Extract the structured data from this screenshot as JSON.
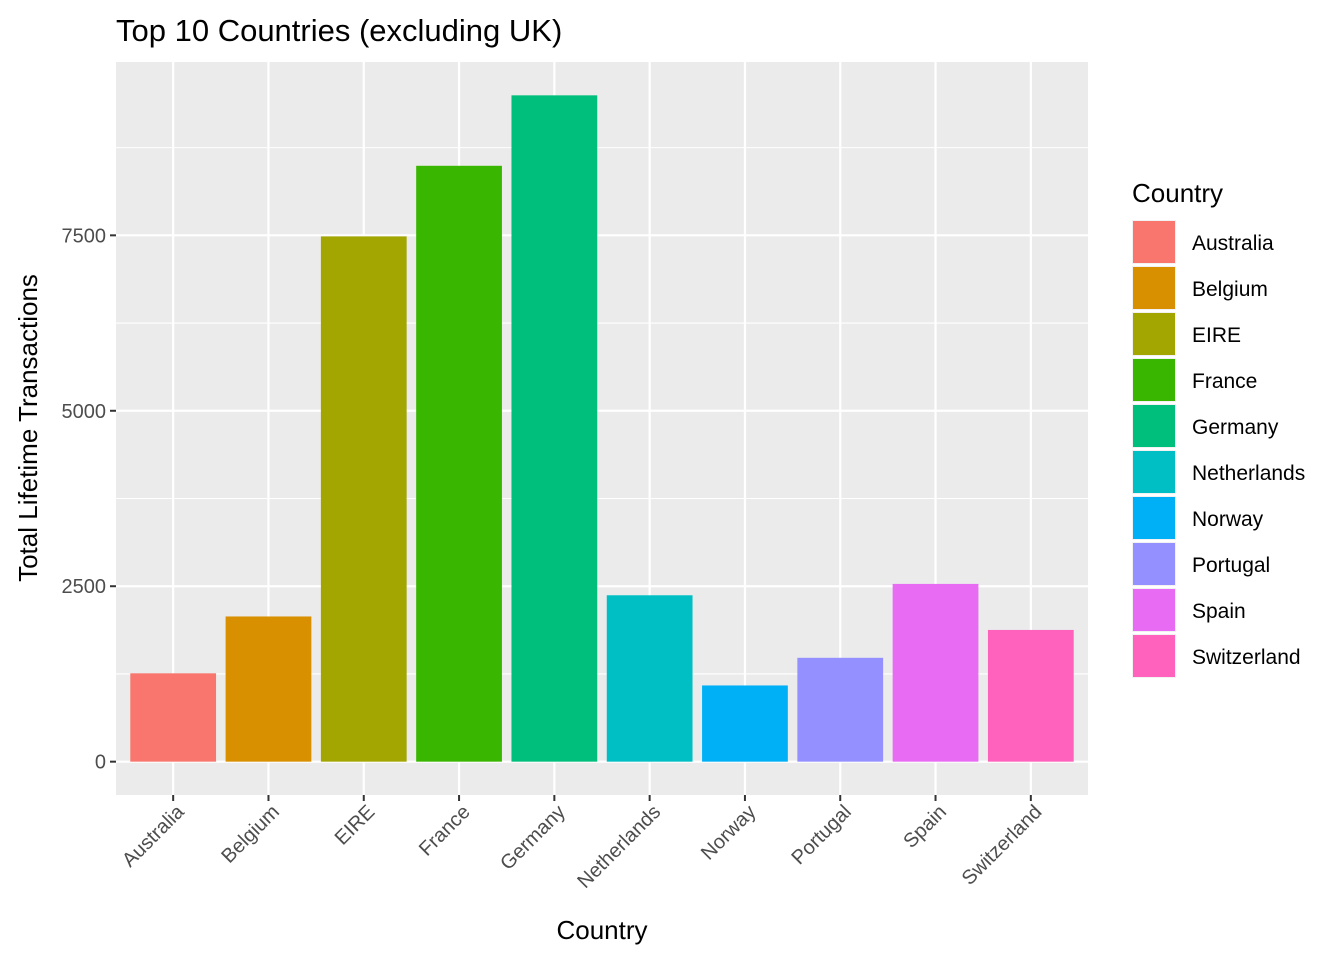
{
  "chart_data": {
    "type": "bar",
    "title": "Top 10 Countries (excluding UK)",
    "xlabel": "Country",
    "ylabel": "Total Lifetime Transactions",
    "categories": [
      "Australia",
      "Belgium",
      "EIRE",
      "France",
      "Germany",
      "Netherlands",
      "Norway",
      "Portugal",
      "Spain",
      "Switzerland"
    ],
    "values": [
      1259,
      2069,
      7485,
      8491,
      9495,
      2371,
      1086,
      1480,
      2533,
      1877
    ],
    "colors": [
      "#F8766D",
      "#D89000",
      "#A3A500",
      "#39B600",
      "#00BF7D",
      "#00BFC4",
      "#00B0F6",
      "#9590FF",
      "#E76BF3",
      "#FF62BC"
    ],
    "ylim": [
      -475,
      9970
    ],
    "yticks": [
      0,
      2500,
      5000,
      7500
    ],
    "yticks_labels": [
      "0",
      "2500",
      "5000",
      "7500"
    ],
    "panel_background": "#EBEBEB",
    "grid": true,
    "legend": {
      "title": "Country",
      "position": "right",
      "entries": [
        "Australia",
        "Belgium",
        "EIRE",
        "France",
        "Germany",
        "Netherlands",
        "Norway",
        "Portugal",
        "Spain",
        "Switzerland"
      ]
    }
  }
}
